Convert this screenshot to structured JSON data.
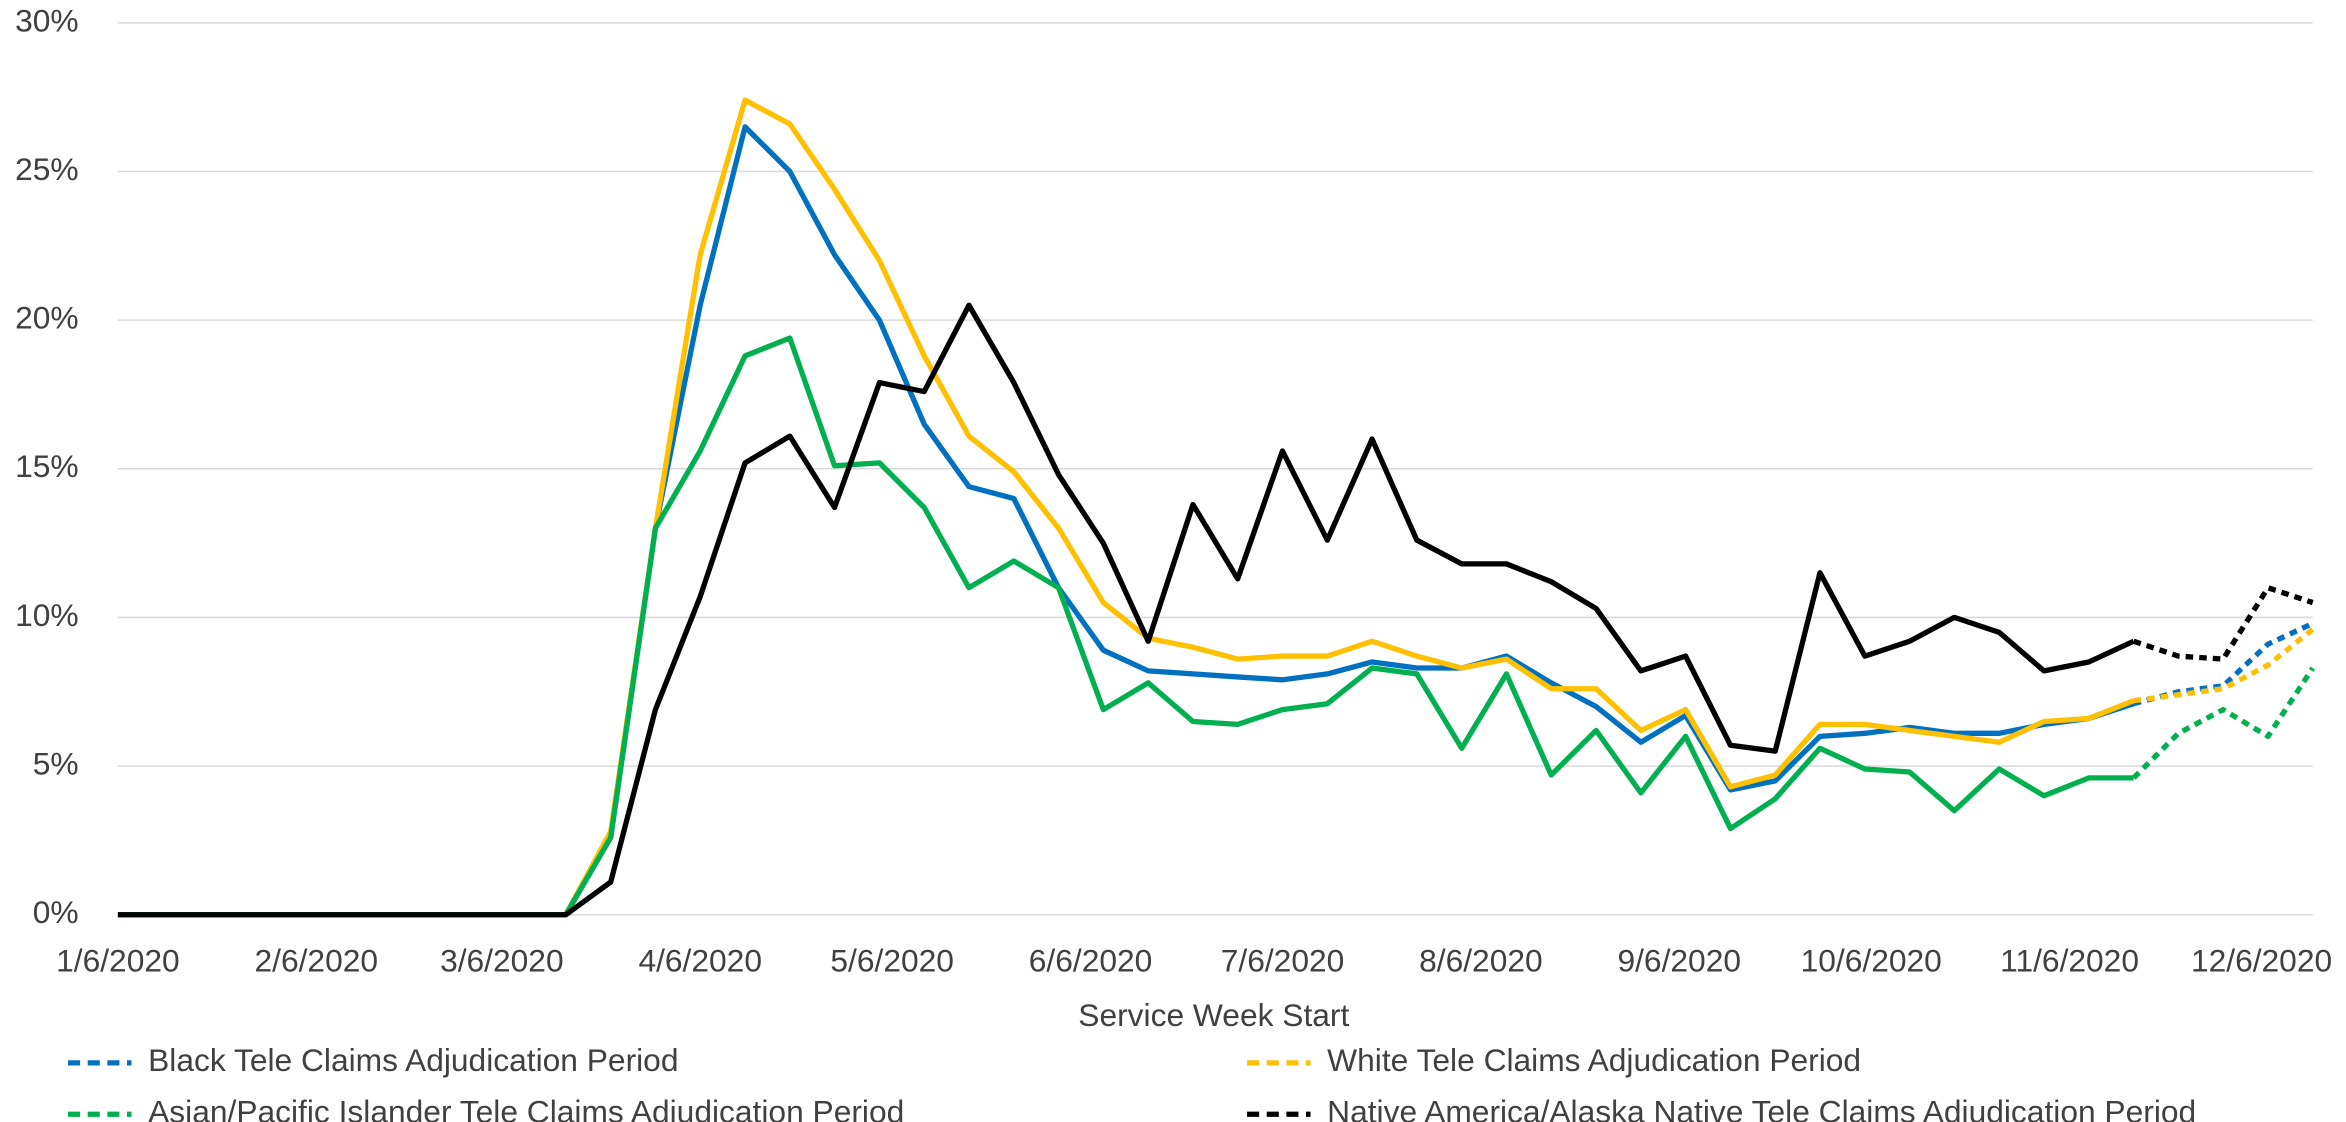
{
  "chart_data": {
    "type": "line",
    "x_label": "Service Week Start",
    "x": [
      "1/6/2020",
      "1/13/2020",
      "1/20/2020",
      "1/27/2020",
      "2/3/2020",
      "2/10/2020",
      "2/17/2020",
      "2/24/2020",
      "3/2/2020",
      "3/9/2020",
      "3/16/2020",
      "3/23/2020",
      "3/30/2020",
      "4/6/2020",
      "4/13/2020",
      "4/20/2020",
      "4/27/2020",
      "5/4/2020",
      "5/11/2020",
      "5/18/2020",
      "5/25/2020",
      "6/1/2020",
      "6/8/2020",
      "6/15/2020",
      "6/22/2020",
      "6/29/2020",
      "7/6/2020",
      "7/13/2020",
      "7/20/2020",
      "7/27/2020",
      "8/3/2020",
      "8/10/2020",
      "8/17/2020",
      "8/24/2020",
      "8/31/2020",
      "9/7/2020",
      "9/14/2020",
      "9/21/2020",
      "9/28/2020",
      "10/5/2020",
      "10/12/2020",
      "10/19/2020",
      "10/26/2020",
      "11/2/2020",
      "11/9/2020",
      "11/16/2020",
      "11/23/2020",
      "11/30/2020",
      "12/7/2020",
      "12/14/2020"
    ],
    "dashed_from": 45,
    "series": [
      {
        "name": "Black Tele Claims Adjudication Period",
        "color": "#0070c0",
        "values": [
          0,
          0,
          0,
          0,
          0,
          0,
          0,
          0,
          0,
          0,
          0,
          2.6,
          13,
          20.5,
          26.5,
          25,
          22.2,
          20,
          16.5,
          14.4,
          14,
          11,
          8.9,
          8.2,
          8.1,
          8.0,
          7.9,
          8.1,
          8.5,
          8.3,
          8.3,
          8.7,
          7.8,
          7.0,
          5.8,
          6.7,
          4.2,
          4.5,
          6.0,
          6.1,
          6.3,
          6.1,
          6.1,
          6.4,
          6.6,
          7.1,
          7.5,
          7.7,
          9.1,
          9.8
        ]
      },
      {
        "name": "White Tele Claims Adjudication Period",
        "color": "#ffc000",
        "values": [
          0,
          0,
          0,
          0,
          0,
          0,
          0,
          0,
          0,
          0,
          0,
          2.8,
          13,
          22.2,
          27.4,
          26.6,
          24.4,
          22,
          18.8,
          16.1,
          14.9,
          13,
          10.5,
          9.3,
          9.0,
          8.6,
          8.7,
          8.7,
          9.2,
          8.7,
          8.3,
          8.6,
          7.6,
          7.6,
          6.2,
          6.9,
          4.3,
          4.7,
          6.4,
          6.4,
          6.2,
          6.0,
          5.8,
          6.5,
          6.6,
          7.2,
          7.4,
          7.6,
          8.4,
          9.6
        ]
      },
      {
        "name": "Asian/Pacific Islander Tele Claims Adjudication Period",
        "color": "#00b050",
        "values": [
          0,
          0,
          0,
          0,
          0,
          0,
          0,
          0,
          0,
          0,
          0,
          2.6,
          13,
          15.6,
          18.8,
          19.4,
          15.1,
          15.2,
          13.7,
          11.0,
          11.9,
          11.0,
          6.9,
          7.8,
          6.5,
          6.4,
          6.9,
          7.1,
          8.3,
          8.1,
          5.6,
          8.1,
          4.7,
          6.2,
          4.1,
          6.0,
          2.9,
          3.9,
          5.6,
          4.9,
          4.8,
          3.5,
          4.9,
          4.0,
          4.6,
          4.6,
          6.1,
          6.9,
          6.0,
          8.3
        ]
      },
      {
        "name": "Native America/Alaska Native Tele Claims Adjudication Period",
        "color": "#000000",
        "values": [
          0,
          0,
          0,
          0,
          0,
          0,
          0,
          0,
          0,
          0,
          0,
          1.1,
          6.9,
          10.7,
          15.2,
          16.1,
          13.7,
          17.9,
          17.6,
          20.5,
          17.9,
          14.8,
          12.5,
          9.2,
          13.8,
          11.3,
          15.6,
          12.6,
          16.0,
          12.6,
          11.8,
          11.8,
          11.2,
          10.3,
          8.2,
          8.7,
          5.7,
          5.5,
          11.5,
          8.7,
          9.2,
          10.0,
          9.5,
          8.2,
          8.5,
          9.2,
          8.7,
          8.6,
          11.0,
          10.5
        ]
      }
    ],
    "ylim": [
      0,
      30
    ],
    "yticks": [
      {
        "value": 0,
        "label": "0%"
      },
      {
        "value": 5,
        "label": "5%"
      },
      {
        "value": 10,
        "label": "10%"
      },
      {
        "value": 15,
        "label": "15%"
      },
      {
        "value": 20,
        "label": "20%"
      },
      {
        "value": 25,
        "label": "25%"
      },
      {
        "value": 30,
        "label": "30%"
      }
    ],
    "xticks": [
      "1/6/2020",
      "2/6/2020",
      "3/6/2020",
      "4/6/2020",
      "5/6/2020",
      "6/6/2020",
      "7/6/2020",
      "8/6/2020",
      "9/6/2020",
      "10/6/2020",
      "11/6/2020",
      "12/6/2020"
    ],
    "grid": true
  }
}
